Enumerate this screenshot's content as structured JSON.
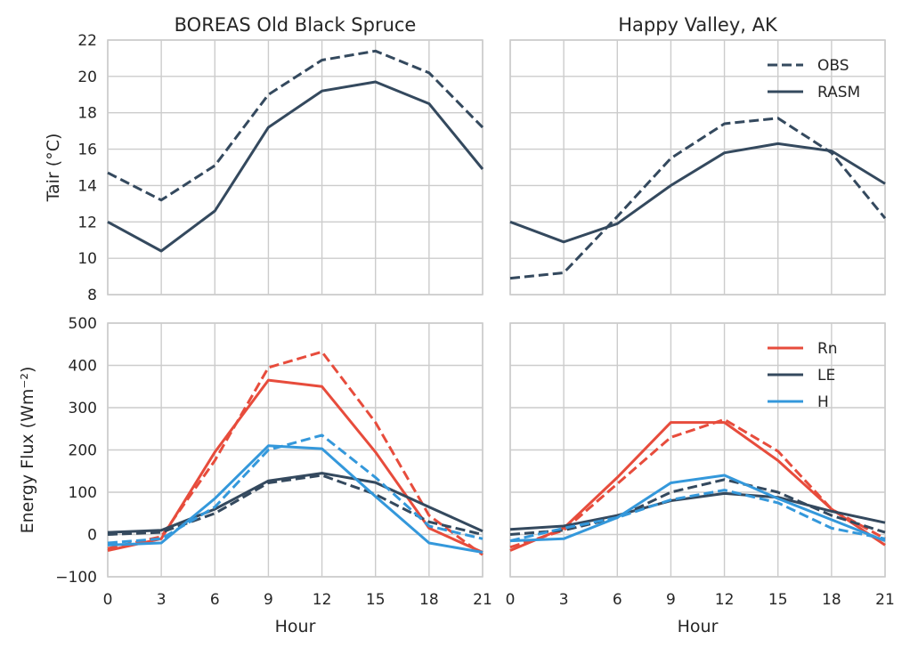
{
  "colors": {
    "rasm": "#34495e",
    "rn": "#e74c3c",
    "le": "#34495e",
    "h": "#3498db",
    "grid": "#cccccc",
    "text": "#262626"
  },
  "chart_data": [
    {
      "type": "line",
      "title": "BOREAS Old Black Spruce",
      "xlabel": "",
      "ylabel": "Tair (°C)",
      "x": [
        0,
        3,
        6,
        9,
        12,
        15,
        18,
        21
      ],
      "xlim": [
        0,
        21
      ],
      "ylim": [
        8,
        22
      ],
      "xticks": [
        "0",
        "3",
        "6",
        "9",
        "12",
        "15",
        "18",
        "21"
      ],
      "yticks": [
        "8",
        "10",
        "12",
        "14",
        "16",
        "18",
        "20",
        "22"
      ],
      "grid": true,
      "series": [
        {
          "name": "OBS",
          "style": "dashed",
          "color": "#34495e",
          "values": [
            14.7,
            13.2,
            15.1,
            19.0,
            20.9,
            21.4,
            20.2,
            17.2
          ]
        },
        {
          "name": "RASM",
          "style": "solid",
          "color": "#34495e",
          "values": [
            12.0,
            10.4,
            12.6,
            17.2,
            19.2,
            19.7,
            18.5,
            14.9
          ]
        }
      ]
    },
    {
      "type": "line",
      "title": "Happy Valley, AK",
      "xlabel": "",
      "ylabel": "",
      "x": [
        0,
        3,
        6,
        9,
        12,
        15,
        18,
        21
      ],
      "xlim": [
        0,
        21
      ],
      "ylim": [
        8,
        22
      ],
      "xticks": [
        "0",
        "3",
        "6",
        "9",
        "12",
        "15",
        "18",
        "21"
      ],
      "yticks": [],
      "grid": true,
      "legend": {
        "position": "top-right",
        "entries": [
          "OBS",
          "RASM"
        ]
      },
      "series": [
        {
          "name": "OBS",
          "style": "dashed",
          "color": "#34495e",
          "values": [
            8.9,
            9.2,
            12.3,
            15.5,
            17.4,
            17.7,
            15.8,
            12.2
          ]
        },
        {
          "name": "RASM",
          "style": "solid",
          "color": "#34495e",
          "values": [
            12.0,
            10.9,
            11.9,
            14.0,
            15.8,
            16.3,
            15.9,
            14.1
          ]
        }
      ]
    },
    {
      "type": "line",
      "title": "",
      "xlabel": "Hour",
      "ylabel": "Energy Flux (Wm⁻²)",
      "x": [
        0,
        3,
        6,
        9,
        12,
        15,
        18,
        21
      ],
      "xlim": [
        0,
        21
      ],
      "ylim": [
        -100,
        500
      ],
      "xticks": [
        "0",
        "3",
        "6",
        "9",
        "12",
        "15",
        "18",
        "21"
      ],
      "yticks": [
        "−100",
        "0",
        "100",
        "200",
        "300",
        "400",
        "500"
      ],
      "grid": true,
      "series": [
        {
          "name": "Rn",
          "style": "solid",
          "color": "#e74c3c",
          "values": [
            -38,
            -10,
            195,
            365,
            350,
            195,
            15,
            -42
          ]
        },
        {
          "name": "Rn",
          "style": "dashed",
          "color": "#e74c3c",
          "values": [
            -33,
            -5,
            175,
            395,
            432,
            265,
            45,
            -48
          ]
        },
        {
          "name": "LE",
          "style": "solid",
          "color": "#34495e",
          "values": [
            5,
            10,
            60,
            127,
            145,
            123,
            65,
            8
          ]
        },
        {
          "name": "LE",
          "style": "dashed",
          "color": "#34495e",
          "values": [
            0,
            5,
            50,
            122,
            140,
            95,
            30,
            0
          ]
        },
        {
          "name": "H",
          "style": "solid",
          "color": "#3498db",
          "values": [
            -25,
            -20,
            85,
            210,
            203,
            90,
            -20,
            -42
          ]
        },
        {
          "name": "H",
          "style": "dashed",
          "color": "#3498db",
          "values": [
            -20,
            -10,
            65,
            200,
            235,
            135,
            20,
            -10
          ]
        }
      ]
    },
    {
      "type": "line",
      "title": "",
      "xlabel": "Hour",
      "ylabel": "",
      "x": [
        0,
        3,
        6,
        9,
        12,
        15,
        18,
        21
      ],
      "xlim": [
        0,
        21
      ],
      "ylim": [
        -100,
        500
      ],
      "xticks": [
        "0",
        "3",
        "6",
        "9",
        "12",
        "15",
        "18",
        "21"
      ],
      "yticks": [],
      "grid": true,
      "legend": {
        "position": "top-right",
        "entries": [
          "Rn",
          "LE",
          "H"
        ]
      },
      "series": [
        {
          "name": "Rn",
          "style": "solid",
          "color": "#e74c3c",
          "values": [
            -38,
            15,
            135,
            265,
            265,
            175,
            60,
            -25
          ]
        },
        {
          "name": "Rn",
          "style": "dashed",
          "color": "#e74c3c",
          "values": [
            -30,
            10,
            120,
            230,
            272,
            197,
            60,
            -10
          ]
        },
        {
          "name": "LE",
          "style": "solid",
          "color": "#34495e",
          "values": [
            12,
            20,
            45,
            80,
            97,
            88,
            55,
            28
          ]
        },
        {
          "name": "LE",
          "style": "dashed",
          "color": "#34495e",
          "values": [
            0,
            10,
            40,
            100,
            130,
            100,
            45,
            5
          ]
        },
        {
          "name": "H",
          "style": "solid",
          "color": "#3498db",
          "values": [
            -15,
            -10,
            40,
            122,
            140,
            85,
            35,
            -15
          ]
        },
        {
          "name": "H",
          "style": "dashed",
          "color": "#3498db",
          "values": [
            -15,
            15,
            40,
            82,
            105,
            75,
            15,
            -10
          ]
        }
      ]
    }
  ]
}
